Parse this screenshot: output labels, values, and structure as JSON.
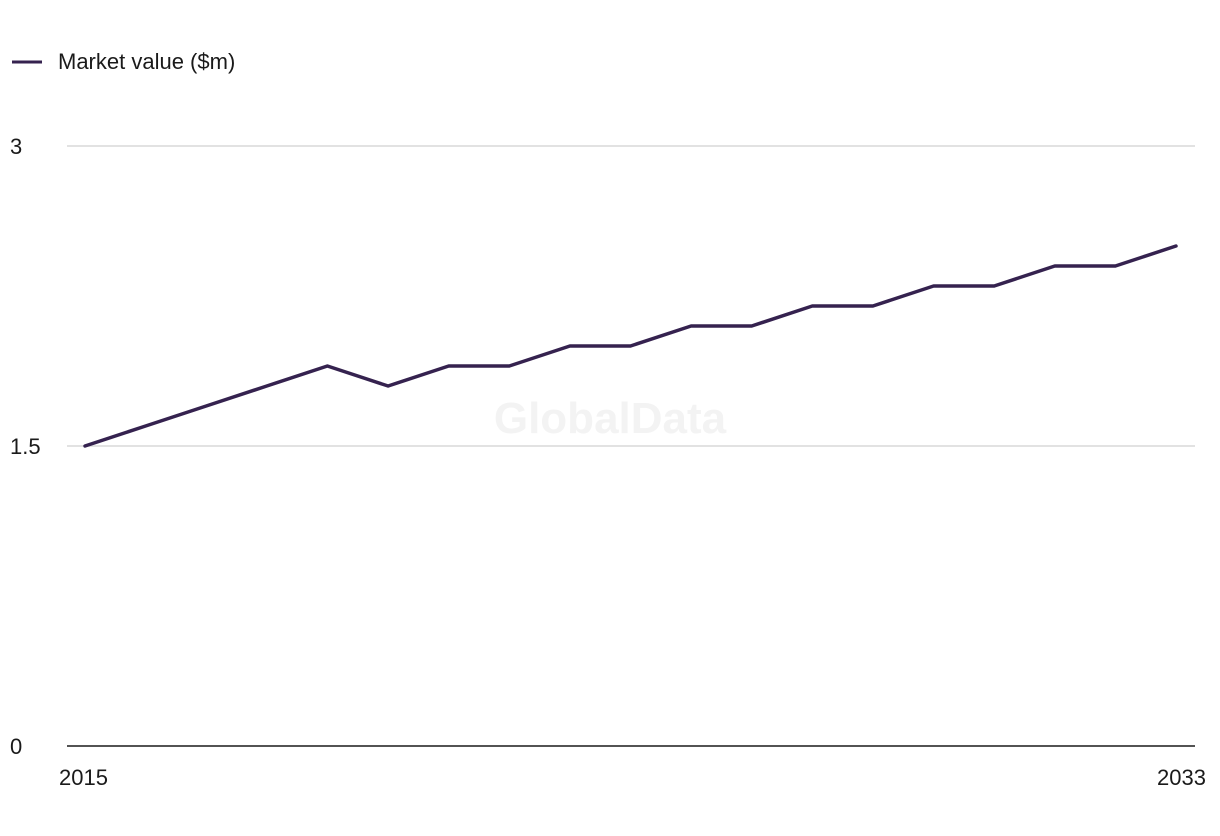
{
  "chart_data": {
    "type": "line",
    "title": "",
    "xlabel": "",
    "ylabel": "",
    "x": [
      2015,
      2016,
      2017,
      2018,
      2019,
      2020,
      2021,
      2022,
      2023,
      2024,
      2025,
      2026,
      2027,
      2028,
      2029,
      2030,
      2031,
      2032,
      2033
    ],
    "series": [
      {
        "name": "Market value ($m)",
        "color": "#35224f",
        "values": [
          1.5,
          1.6,
          1.7,
          1.8,
          1.9,
          1.8,
          1.9,
          1.9,
          2.0,
          2.0,
          2.1,
          2.1,
          2.2,
          2.2,
          2.3,
          2.3,
          2.4,
          2.4,
          2.5
        ]
      }
    ],
    "ylim": [
      0,
      3
    ],
    "yticks": [
      "0",
      "1.5",
      "3"
    ],
    "xticks": [
      "2015",
      "2033"
    ],
    "grid": true,
    "legend_position": "top-left"
  },
  "watermark": "GlobalData",
  "colors": {
    "line": "#35224f",
    "gridline": "#d9d9d9",
    "axis": "#1a1a1a"
  }
}
